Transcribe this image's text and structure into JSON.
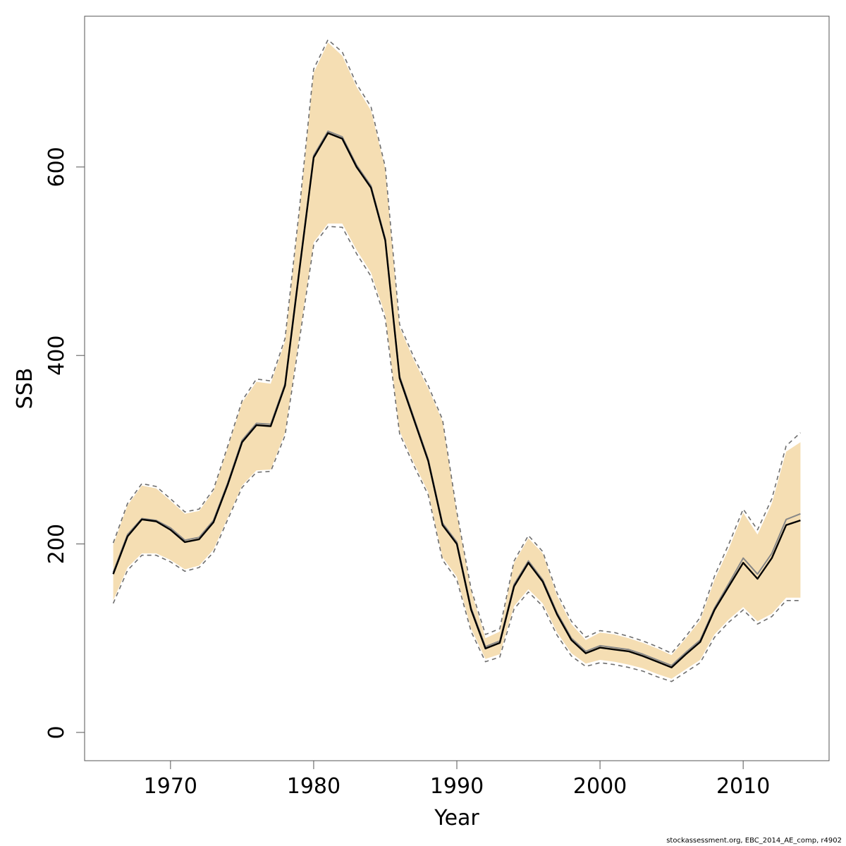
{
  "chart_data": {
    "type": "area",
    "xlabel": "Year",
    "ylabel": "SSB",
    "xlim": [
      1964,
      2016
    ],
    "ylim": [
      -30,
      760
    ],
    "x_ticks": [
      1970,
      1980,
      1990,
      2000,
      2010
    ],
    "y_ticks": [
      0,
      200,
      400,
      600
    ],
    "grid": false,
    "years": [
      1966,
      1967,
      1968,
      1969,
      1970,
      1971,
      1972,
      1973,
      1974,
      1975,
      1976,
      1977,
      1978,
      1979,
      1980,
      1981,
      1982,
      1983,
      1984,
      1985,
      1986,
      1987,
      1988,
      1989,
      1990,
      1991,
      1992,
      1993,
      1994,
      1995,
      1996,
      1997,
      1998,
      1999,
      2000,
      2001,
      2002,
      2003,
      2004,
      2005,
      2006,
      2007,
      2008,
      2009,
      2010,
      2011,
      2012,
      2013,
      2014
    ],
    "series": [
      {
        "role": "estimate",
        "values": [
          168,
          208,
          226,
          224,
          215,
          202,
          205,
          223,
          263,
          308,
          326,
          325,
          368,
          490,
          610,
          636,
          630,
          600,
          578,
          522,
          376,
          332,
          288,
          220,
          200,
          130,
          89,
          95,
          155,
          180,
          160,
          125,
          98,
          84,
          90,
          88,
          86,
          81,
          75,
          69,
          83,
          96,
          130,
          155,
          180,
          163,
          185,
          220,
          225
        ]
      },
      {
        "role": "estimate-alt",
        "values": [
          170,
          210,
          227,
          225,
          217,
          204,
          207,
          225,
          265,
          310,
          328,
          327,
          370,
          492,
          612,
          638,
          632,
          602,
          580,
          524,
          378,
          334,
          290,
          222,
          202,
          132,
          91,
          97,
          157,
          182,
          162,
          127,
          100,
          86,
          92,
          90,
          88,
          83,
          77,
          71,
          85,
          98,
          132,
          158,
          185,
          168,
          190,
          226,
          232
        ]
      },
      {
        "role": "upper-band",
        "values": [
          199,
          241,
          262,
          259,
          246,
          232,
          235,
          256,
          302,
          350,
          372,
          370,
          415,
          552,
          700,
          732,
          718,
          685,
          660,
          598,
          430,
          395,
          365,
          330,
          232,
          150,
          100,
          107,
          180,
          206,
          190,
          145,
          115,
          98,
          106,
          104,
          100,
          95,
          89,
          82,
          100,
          119,
          162,
          195,
          233,
          210,
          243,
          298,
          308
        ]
      },
      {
        "role": "lower-band",
        "values": [
          140,
          175,
          190,
          190,
          183,
          173,
          177,
          194,
          228,
          262,
          278,
          279,
          318,
          420,
          520,
          540,
          540,
          512,
          488,
          443,
          320,
          286,
          255,
          186,
          165,
          110,
          78,
          83,
          134,
          152,
          137,
          106,
          84,
          73,
          77,
          75,
          72,
          68,
          62,
          57,
          67,
          77,
          104,
          120,
          133,
          118,
          126,
          143,
          143
        ]
      },
      {
        "role": "upper-ci",
        "values": [
          201,
          243,
          264,
          261,
          248,
          234,
          237,
          258,
          304,
          352,
          375,
          373,
          418,
          555,
          704,
          735,
          722,
          688,
          664,
          600,
          433,
          398,
          368,
          332,
          234,
          152,
          104,
          110,
          182,
          209,
          192,
          148,
          118,
          101,
          108,
          106,
          102,
          97,
          91,
          84,
          102,
          122,
          166,
          200,
          237,
          215,
          248,
          304,
          318
        ]
      },
      {
        "role": "lower-ci",
        "values": [
          137,
          172,
          188,
          188,
          181,
          171,
          175,
          191,
          226,
          260,
          276,
          277,
          315,
          416,
          517,
          537,
          536,
          508,
          484,
          439,
          317,
          283,
          252,
          183,
          162,
          107,
          75,
          80,
          131,
          149,
          134,
          103,
          81,
          70,
          74,
          72,
          69,
          65,
          59,
          54,
          64,
          74,
          101,
          117,
          130,
          115,
          123,
          140,
          140
        ]
      }
    ]
  },
  "colors": {
    "band": "#f5deb3",
    "estimate": "#000000",
    "estimate_alt": "#888888",
    "ci_dash": "#6e6e6e",
    "frame": "#555555"
  },
  "footer": {
    "text": "stockassessment.org, EBC_2014_AE_comp, r4902"
  }
}
